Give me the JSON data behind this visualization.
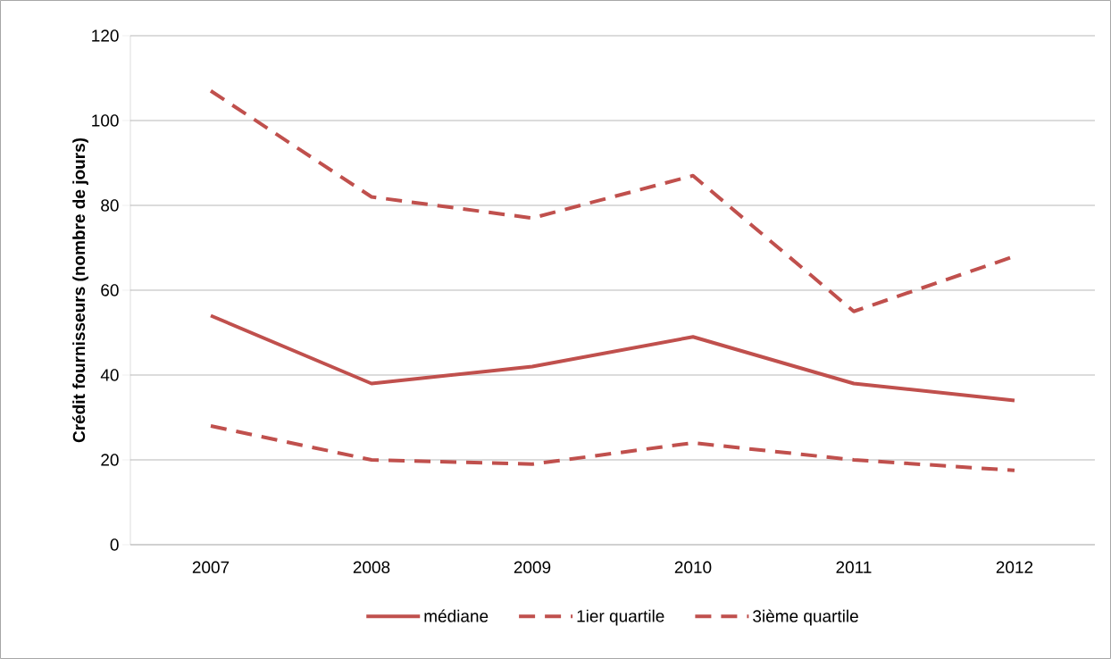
{
  "chart_data": {
    "type": "line",
    "ylabel": "Crédit fournisseurs (nombre de jours)",
    "categories": [
      "2007",
      "2008",
      "2009",
      "2010",
      "2011",
      "2012"
    ],
    "series": [
      {
        "name": "médiane",
        "color": "#c0504d",
        "line_style": "solid",
        "values": [
          54,
          38,
          42,
          49,
          38,
          34
        ]
      },
      {
        "name": "1ier quartile",
        "color": "#c0504d",
        "line_style": "dashed",
        "values": [
          28,
          20,
          19,
          24,
          20,
          17.5
        ]
      },
      {
        "name": "3ième quartile",
        "color": "#c0504d",
        "line_style": "dashed",
        "values": [
          107,
          82,
          77,
          87,
          55,
          68
        ]
      }
    ],
    "ylim": [
      0,
      120
    ],
    "yticks": [
      0,
      20,
      40,
      60,
      80,
      100,
      120
    ],
    "grid": "y",
    "legend": "bottom",
    "marker": "none"
  }
}
